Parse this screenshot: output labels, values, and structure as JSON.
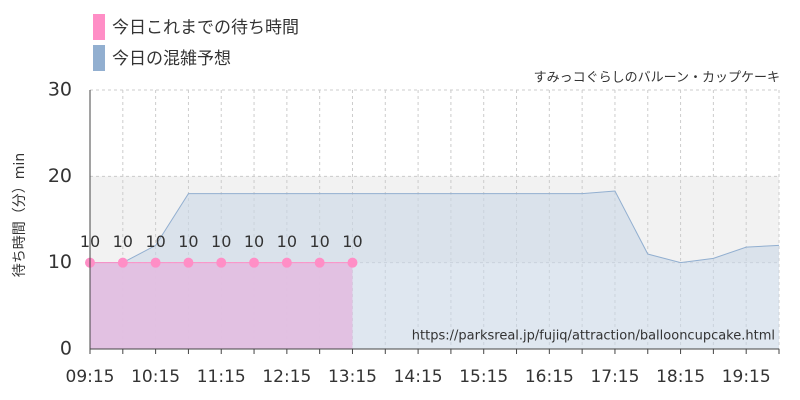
{
  "chart_data": {
    "type": "area",
    "subtitle": "すみっコぐらしのバルーン・カップケーキ",
    "y_label": "待ち時間（分）min",
    "annotation": "https://parksreal.jp/fujiq/attraction/ballooncupcake.html",
    "categories": [
      "09:15",
      null,
      "10:15",
      null,
      "11:15",
      null,
      "12:15",
      null,
      "13:15",
      null,
      "14:15",
      null,
      "15:15",
      null,
      "16:15",
      null,
      "17:15",
      null,
      "18:15",
      null,
      "19:15",
      null
    ],
    "series": [
      {
        "name": "今日これまでの待ち時間",
        "color": "#ff8ec6",
        "fill": "#e2bfe0",
        "values": [
          10,
          10,
          10,
          10,
          10,
          10,
          10,
          10,
          10,
          null,
          null,
          null,
          null,
          null,
          null,
          null,
          null,
          null,
          null,
          null,
          null,
          null
        ]
      },
      {
        "name": "今日の混雑予想",
        "color": "#92afd0",
        "fill": "#c9d7e6",
        "values": [
          10,
          10,
          12,
          18,
          18,
          18,
          18,
          18,
          18,
          18,
          18,
          18,
          18,
          18,
          18,
          18,
          18.3,
          11,
          10,
          10.5,
          11.8,
          12
        ]
      }
    ],
    "ylim": [
      0,
      30
    ],
    "yticks": [
      0,
      10,
      20,
      30
    ],
    "grid": true
  }
}
